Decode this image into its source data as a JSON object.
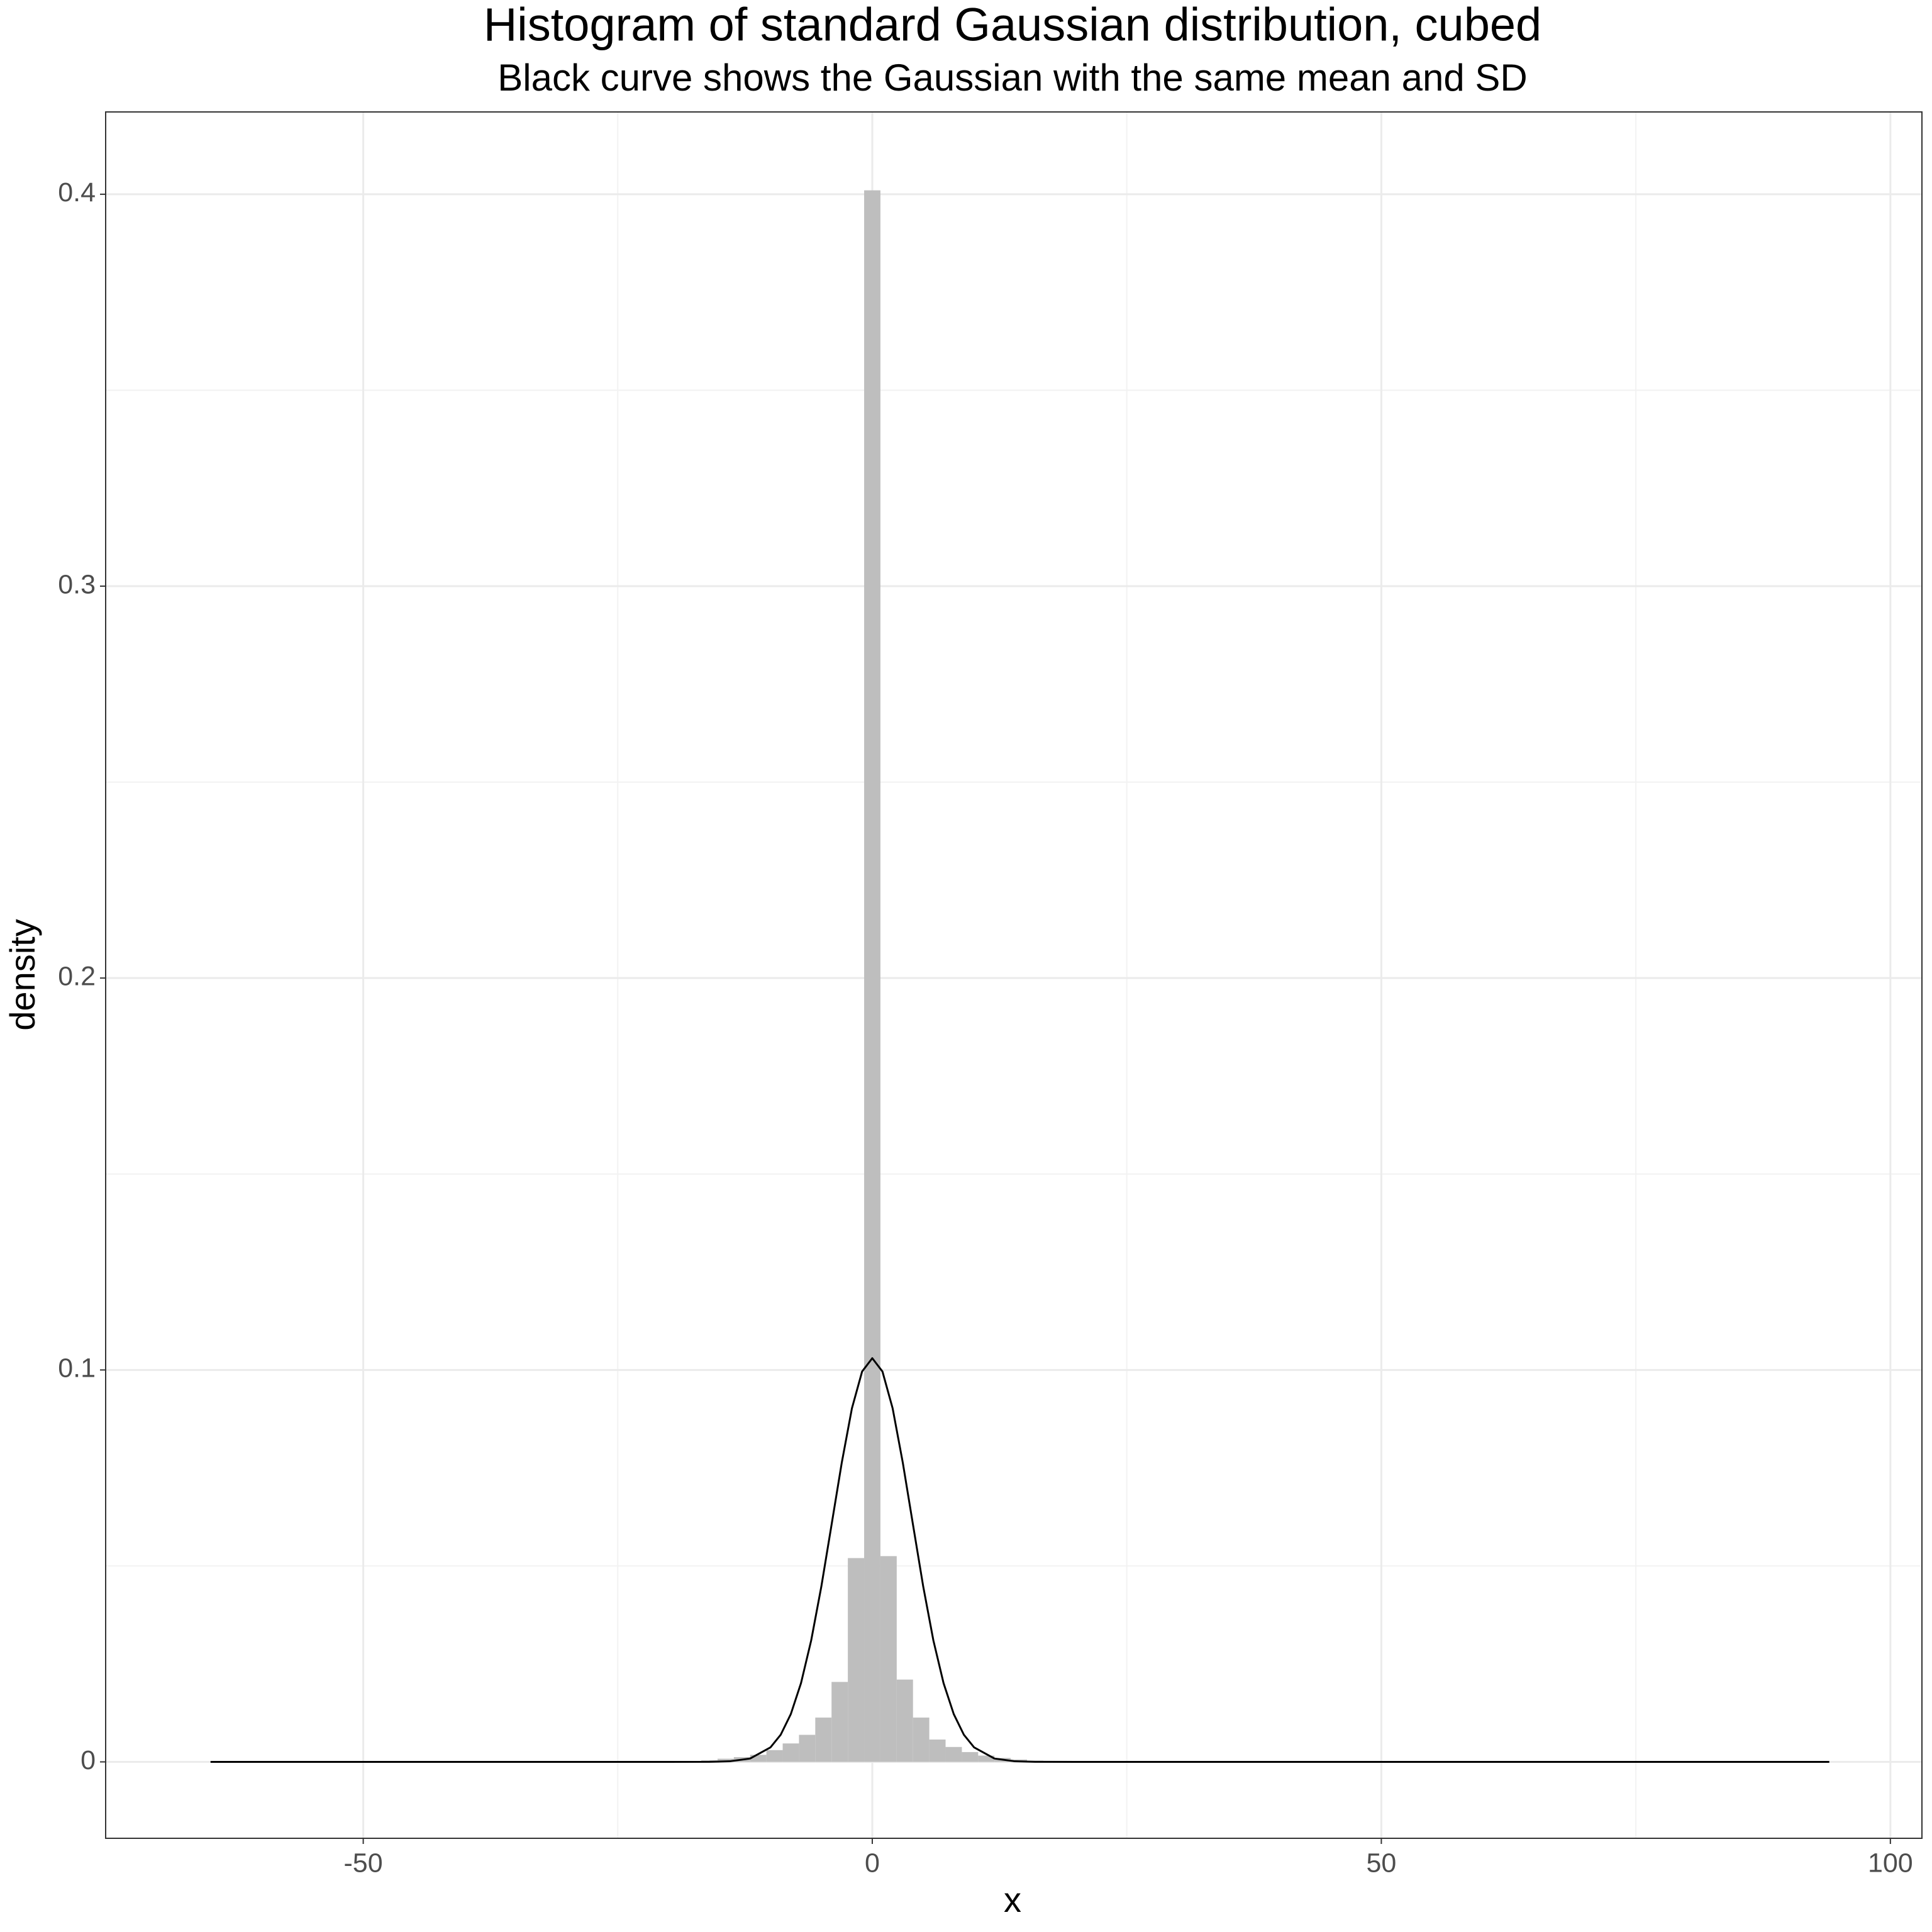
{
  "chart_data": {
    "type": "histogram",
    "title": "Histogram of standard Gaussian distribution, cubed",
    "subtitle": "Black curve shows the Gaussian with the same mean and SD",
    "x_label": "x",
    "y_label": "density",
    "bins": [
      -16.8,
      -15.2,
      -13.6,
      -12,
      -10.4,
      -8.8,
      -7.2,
      -5.6,
      -4,
      -2.4,
      -0.8,
      0.8,
      2.4,
      4,
      5.6,
      7.2,
      8.8,
      10.4,
      12,
      13.6,
      15.2,
      16.8
    ],
    "values": [
      0.0004,
      0.0008,
      0.0012,
      0.0018,
      0.003,
      0.0047,
      0.0069,
      0.0113,
      0.0204,
      0.052,
      0.401,
      0.0525,
      0.021,
      0.0113,
      0.0057,
      0.0038,
      0.0025,
      0.0016,
      0.001,
      0.0006,
      0.0003
    ],
    "color": "#bebebe",
    "curve": {
      "color": "#000000",
      "x": [
        -65,
        -20,
        -16,
        -14,
        -12,
        -10,
        -9,
        -8,
        -7,
        -6,
        -5,
        -4,
        -3,
        -2,
        -1,
        0,
        1,
        2,
        3,
        4,
        5,
        6,
        7,
        8,
        9,
        10,
        12,
        14,
        16,
        20,
        94
      ],
      "values": [
        0,
        0,
        2e-05,
        0.00015,
        0.00085,
        0.0037,
        0.0069,
        0.0122,
        0.0201,
        0.031,
        0.0448,
        0.0605,
        0.0763,
        0.0902,
        0.0996,
        0.103,
        0.0996,
        0.0902,
        0.0763,
        0.0605,
        0.0448,
        0.031,
        0.0201,
        0.0122,
        0.0069,
        0.0037,
        0.00085,
        0.00015,
        2e-05,
        0,
        0
      ]
    },
    "xlim": [
      -75.3,
      103.1
    ],
    "xticks": [
      -50,
      0,
      50,
      100
    ],
    "xminorticks": [
      -25,
      25,
      75
    ],
    "ylim": [
      -0.0195,
      0.421
    ],
    "yticks": [
      0.0,
      0.1,
      0.2,
      0.3,
      0.4
    ],
    "yminorticks": [
      0.05,
      0.15,
      0.25,
      0.35
    ],
    "grid": true
  }
}
